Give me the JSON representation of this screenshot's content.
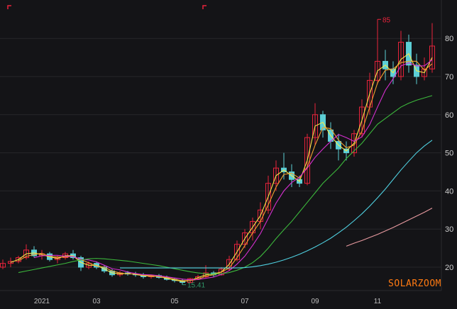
{
  "chart_data": {
    "type": "candlestick",
    "title": "",
    "xlabel": "",
    "ylabel": "",
    "ylim": [
      13,
      88
    ],
    "y_ticks": [
      "20",
      "30",
      "40",
      "50",
      "60",
      "70",
      "80"
    ],
    "x_ticks": [
      {
        "label": "2021",
        "index": 5,
        "highlight": true
      },
      {
        "label": "03",
        "index": 12
      },
      {
        "label": "05",
        "index": 22
      },
      {
        "label": "07",
        "index": 31
      },
      {
        "label": "09",
        "index": 40
      },
      {
        "label": "11",
        "index": 48
      }
    ],
    "grid": true,
    "colors": {
      "background": "#141417",
      "up": "#e8233b",
      "down": "#5ccfd6",
      "grid": "#26262a",
      "axis_text": "#cfcfcf",
      "year_label": "#e0a040",
      "high_label": "#e8233b",
      "low_label": "#2f9a6a"
    },
    "annotations": {
      "high": {
        "label": "85",
        "index": 48,
        "value": 85
      },
      "low": {
        "label": "15.41",
        "index": 23,
        "value": 15.41
      }
    },
    "ohlc": [
      [
        20,
        22,
        19.5,
        21
      ],
      [
        21,
        22.5,
        20,
        21.5
      ],
      [
        21.5,
        23,
        21,
        22.5
      ],
      [
        22.5,
        26,
        22,
        24.5
      ],
      [
        24.5,
        25.5,
        22.5,
        23
      ],
      [
        23,
        24.5,
        22,
        23.5
      ],
      [
        23.5,
        24,
        21.5,
        22
      ],
      [
        22,
        23,
        21,
        22.5
      ],
      [
        22.5,
        24,
        22,
        23.5
      ],
      [
        23.5,
        24.5,
        22,
        22.5
      ],
      [
        22.5,
        23,
        19,
        20
      ],
      [
        20,
        21.5,
        19.5,
        21
      ],
      [
        21,
        21.5,
        19.5,
        20
      ],
      [
        20,
        20.5,
        18.5,
        19
      ],
      [
        19,
        19.5,
        17.5,
        18
      ],
      [
        18,
        19,
        17.5,
        18.5
      ],
      [
        18.5,
        19,
        17.8,
        18.2
      ],
      [
        18.2,
        18.8,
        17.5,
        18
      ],
      [
        18,
        18.5,
        17,
        17.5
      ],
      [
        17.5,
        18,
        17,
        17.8
      ],
      [
        17.8,
        18.2,
        17,
        17.3
      ],
      [
        17.3,
        17.8,
        16.5,
        16.8
      ],
      [
        16.8,
        17.2,
        16,
        16.5
      ],
      [
        16.5,
        17,
        15.41,
        16
      ],
      [
        16,
        17.2,
        15.8,
        17
      ],
      [
        17,
        18,
        16.8,
        17.5
      ],
      [
        17.5,
        20.5,
        17.2,
        18.5
      ],
      [
        18.5,
        19,
        17.5,
        18
      ],
      [
        18,
        20,
        17.8,
        19.5
      ],
      [
        19.5,
        23,
        19,
        22
      ],
      [
        22,
        27,
        21.5,
        26
      ],
      [
        26,
        30,
        25,
        29
      ],
      [
        29,
        33,
        27,
        32
      ],
      [
        32,
        37,
        30,
        35
      ],
      [
        35,
        44,
        34,
        42
      ],
      [
        42,
        48,
        40,
        46
      ],
      [
        46,
        50,
        43,
        45
      ],
      [
        45,
        47,
        41,
        43
      ],
      [
        43,
        44,
        41,
        42
      ],
      [
        42,
        55,
        41.5,
        54
      ],
      [
        54,
        63,
        52,
        60
      ],
      [
        60,
        61,
        54,
        56
      ],
      [
        56,
        58,
        51,
        53
      ],
      [
        53,
        55,
        48,
        51
      ],
      [
        51,
        53,
        48,
        50
      ],
      [
        50,
        56,
        49,
        55
      ],
      [
        55,
        64,
        54,
        62
      ],
      [
        62,
        71,
        60,
        69
      ],
      [
        69,
        85,
        68,
        74
      ],
      [
        74,
        77,
        69,
        72
      ],
      [
        72,
        74,
        68,
        70
      ],
      [
        70,
        82,
        69,
        79
      ],
      [
        79,
        81,
        71,
        73
      ],
      [
        73,
        76,
        68,
        70
      ],
      [
        70,
        75,
        69,
        72
      ],
      [
        72,
        84,
        71,
        78
      ]
    ],
    "series": [
      {
        "color": "#f5e84a",
        "window": 2
      },
      {
        "color": "#f0a030",
        "window": 3
      },
      {
        "color": "#d62fd0",
        "window": 5
      },
      {
        "color": "#3cb83c",
        "start_index": 2,
        "values": [
          18.6,
          19.0,
          19.4,
          19.8,
          20.2,
          20.6,
          21.0,
          21.5,
          21.9,
          22.2,
          22.3,
          22.2,
          22.0,
          21.8,
          21.6,
          21.3,
          21.0,
          20.7,
          20.4,
          20.0,
          19.6,
          19.2,
          18.8,
          18.5,
          18.3,
          18.2,
          18.3,
          18.6,
          19.2,
          20.0,
          21.2,
          22.8,
          25.0,
          27.5,
          29.8,
          32.0,
          34.5,
          37.0,
          39.5,
          42.0,
          44.0,
          46.0,
          48.5,
          50.5,
          52.5,
          55.0,
          57.5,
          59.0,
          60.5,
          62.0,
          63.0,
          63.8,
          64.4,
          65.0
        ]
      },
      {
        "color": "#4fd0e0",
        "start_index": 15,
        "values": [
          19.8,
          19.8,
          19.8,
          19.8,
          19.8,
          19.8,
          19.8,
          19.8,
          19.8,
          19.8,
          19.8,
          19.8,
          19.8,
          19.8,
          19.8,
          19.8,
          19.9,
          20.1,
          20.4,
          20.8,
          21.3,
          21.9,
          22.6,
          23.4,
          24.3,
          25.3,
          26.4,
          27.6,
          29.0,
          30.5,
          32.2,
          34.0,
          36.0,
          38.2,
          40.5,
          43.0,
          45.5,
          47.8,
          50.0,
          51.8,
          53.3
        ]
      },
      {
        "color": "#e89aa0",
        "start_index": 44,
        "values": [
          25.5,
          26.3,
          27.0,
          27.8,
          28.6,
          29.5,
          30.4,
          31.4,
          32.4,
          33.4,
          34.4,
          35.5
        ]
      }
    ]
  },
  "watermark": "SOLARZOOM"
}
